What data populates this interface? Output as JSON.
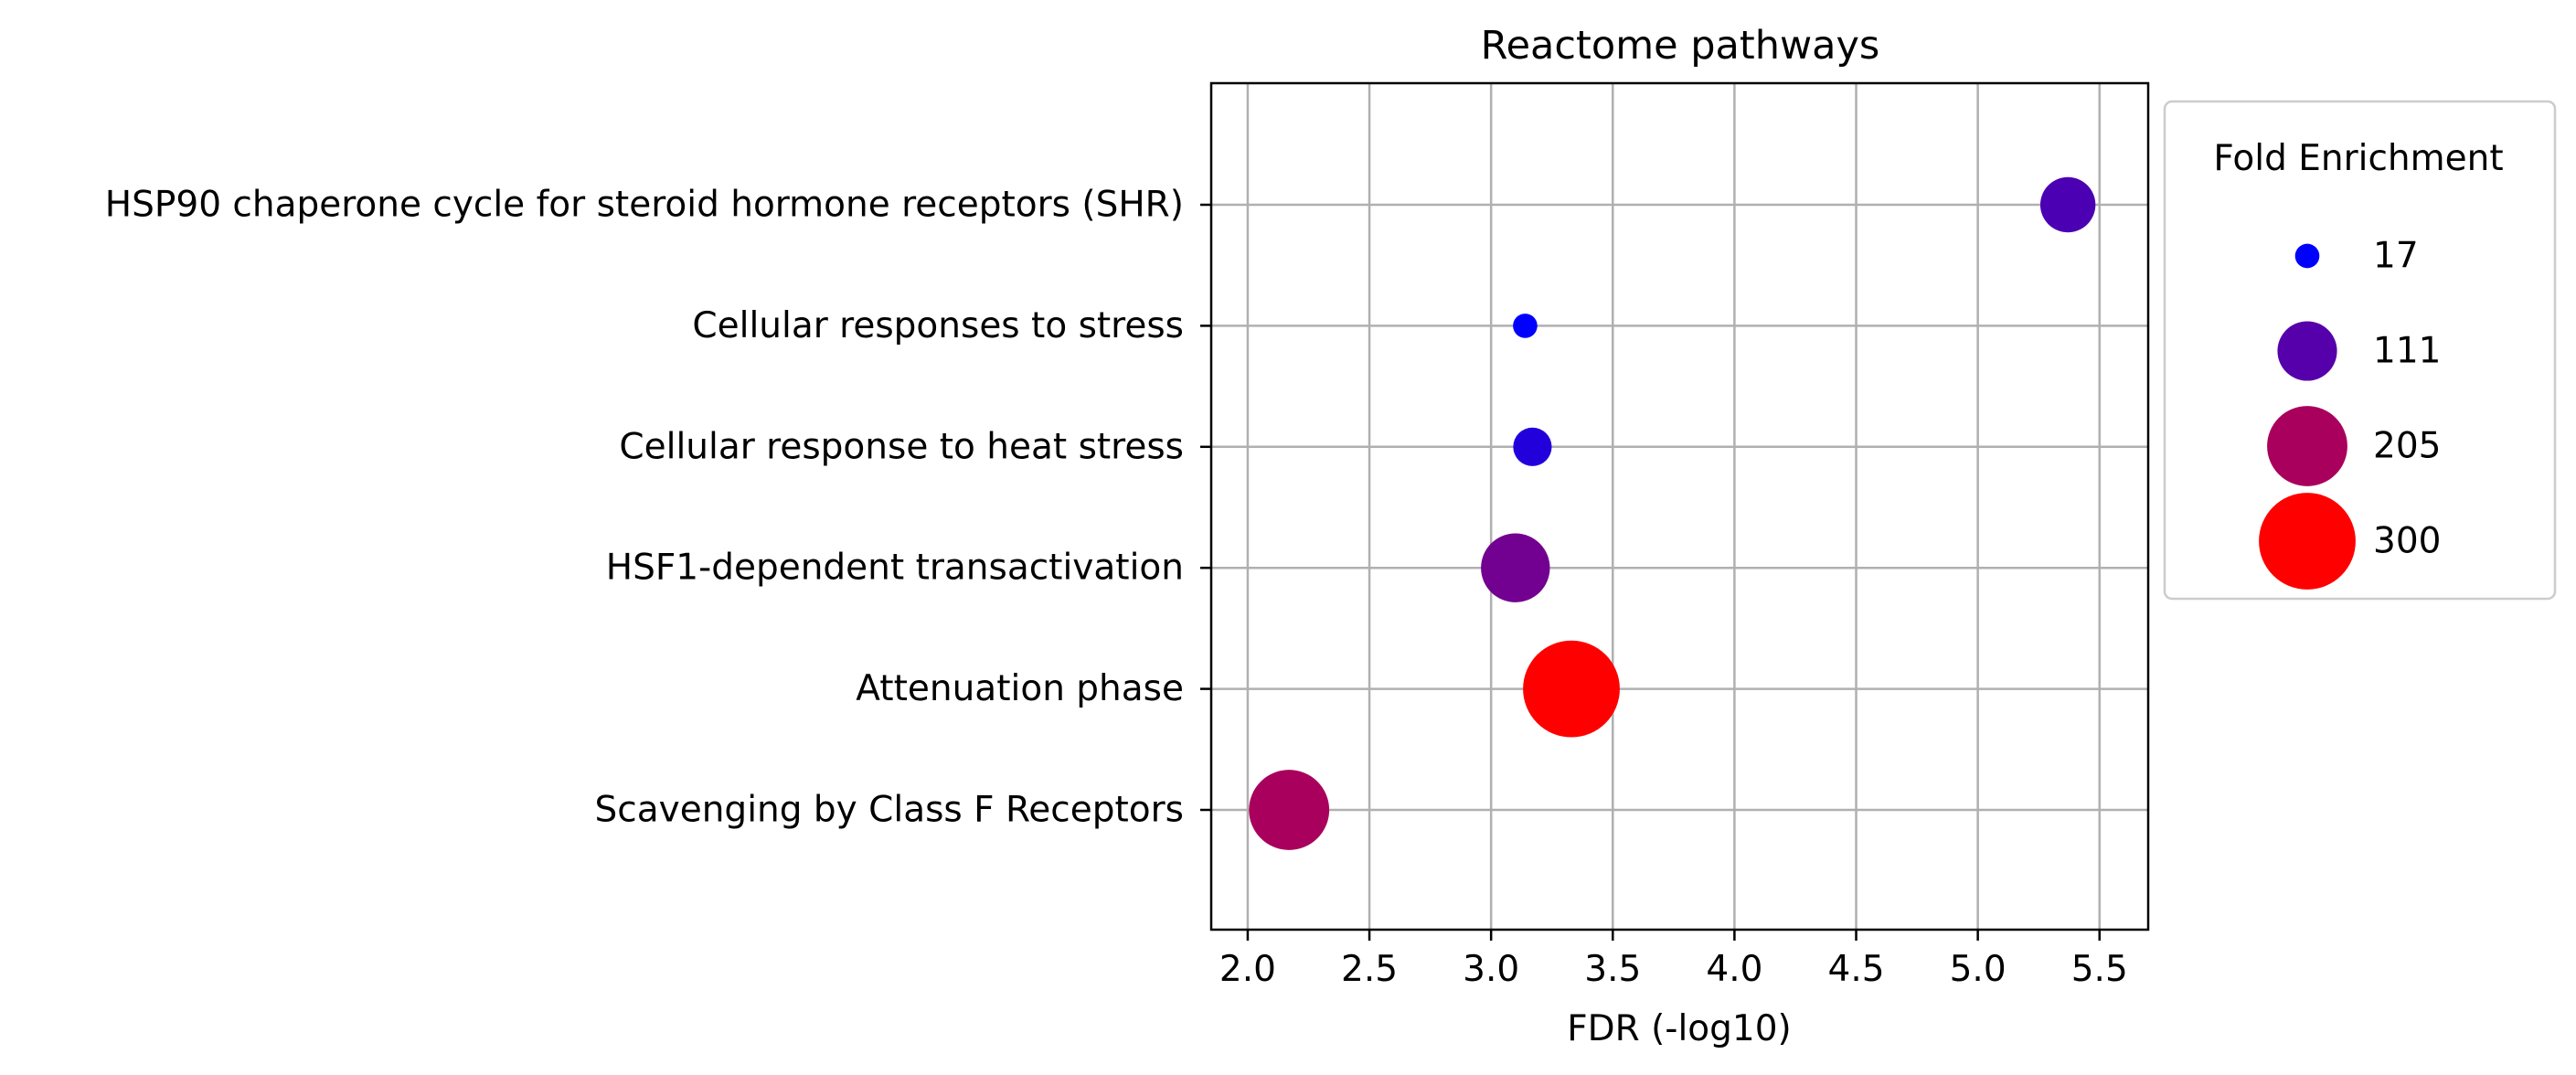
{
  "chart_data": {
    "type": "scatter",
    "title": "Reactome pathways",
    "xlabel": "FDR (-log10)",
    "ylabel": "",
    "xlim": [
      1.85,
      5.7
    ],
    "x_ticks": [
      2.0,
      2.5,
      3.0,
      3.5,
      4.0,
      4.5,
      5.0,
      5.5
    ],
    "x_tick_labels": [
      "2.0",
      "2.5",
      "3.0",
      "3.5",
      "4.0",
      "4.5",
      "5.0",
      "5.5"
    ],
    "grid": true,
    "categories": [
      "HSP90 chaperone cycle for steroid hormone receptors (SHR)",
      "Cellular responses to stress",
      "Cellular response to heat stress",
      "HSF1-dependent transactivation",
      "Attenuation phase",
      "Scavenging by Class F Receptors"
    ],
    "points": [
      {
        "category": "HSP90 chaperone cycle for steroid hormone receptors (SHR)",
        "x": 5.37,
        "fold_enrichment": 95,
        "color": "#4c00b3"
      },
      {
        "category": "Cellular responses to stress",
        "x": 3.14,
        "fold_enrichment": 17,
        "color": "#0000ff"
      },
      {
        "category": "Cellular response to heat stress",
        "x": 3.17,
        "fold_enrichment": 45,
        "color": "#2200dc"
      },
      {
        "category": "HSF1-dependent transactivation",
        "x": 3.1,
        "fold_enrichment": 150,
        "color": "#720090"
      },
      {
        "category": "Attenuation phase",
        "x": 3.33,
        "fold_enrichment": 300,
        "color": "#ff0000"
      },
      {
        "category": "Scavenging by Class F Receptors",
        "x": 2.17,
        "fold_enrichment": 205,
        "color": "#a8005c"
      }
    ],
    "legend": {
      "title": "Fold Enrichment",
      "placement": "right, outside",
      "entries": [
        {
          "label": "17",
          "value": 17,
          "color": "#0000ff"
        },
        {
          "label": "111",
          "value": 111,
          "color": "#5600ab"
        },
        {
          "label": "205",
          "value": 205,
          "color": "#a8005c"
        },
        {
          "label": "300",
          "value": 300,
          "color": "#ff0000"
        }
      ]
    }
  }
}
